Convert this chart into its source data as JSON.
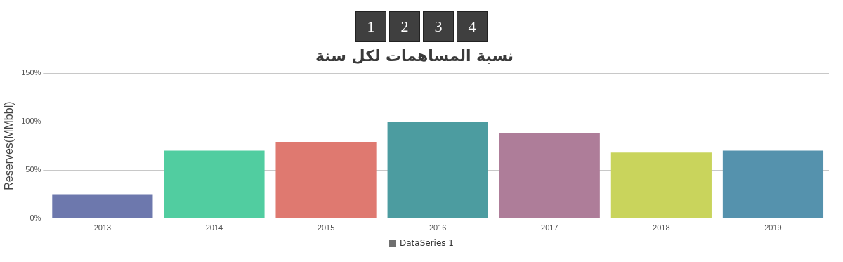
{
  "chart_data": {
    "type": "bar",
    "title": "نسبة المساهمات لكل سنة",
    "ylabel": "Reserves(MMbbl)",
    "annotations": [
      "1",
      "2",
      "3",
      "4"
    ],
    "categories": [
      "2013",
      "2014",
      "2015",
      "2016",
      "2017",
      "2018",
      "2019"
    ],
    "series": [
      {
        "name": "DataSeries 1",
        "color": "#6f6f6f",
        "colors": [
          "#6d78ad",
          "#51cda0",
          "#df7970",
          "#4c9ca0",
          "#ae7d99",
          "#c9d45c",
          "#5592ad"
        ],
        "values": [
          25,
          70,
          79,
          100,
          88,
          68,
          70
        ]
      }
    ],
    "ylim": [
      0,
      150
    ],
    "yticks": [
      {
        "value": 0,
        "label": "0%"
      },
      {
        "value": 50,
        "label": "50%"
      },
      {
        "value": 100,
        "label": "100%"
      },
      {
        "value": 150,
        "label": "150%"
      }
    ],
    "grid": "y",
    "legend": "bottom"
  }
}
